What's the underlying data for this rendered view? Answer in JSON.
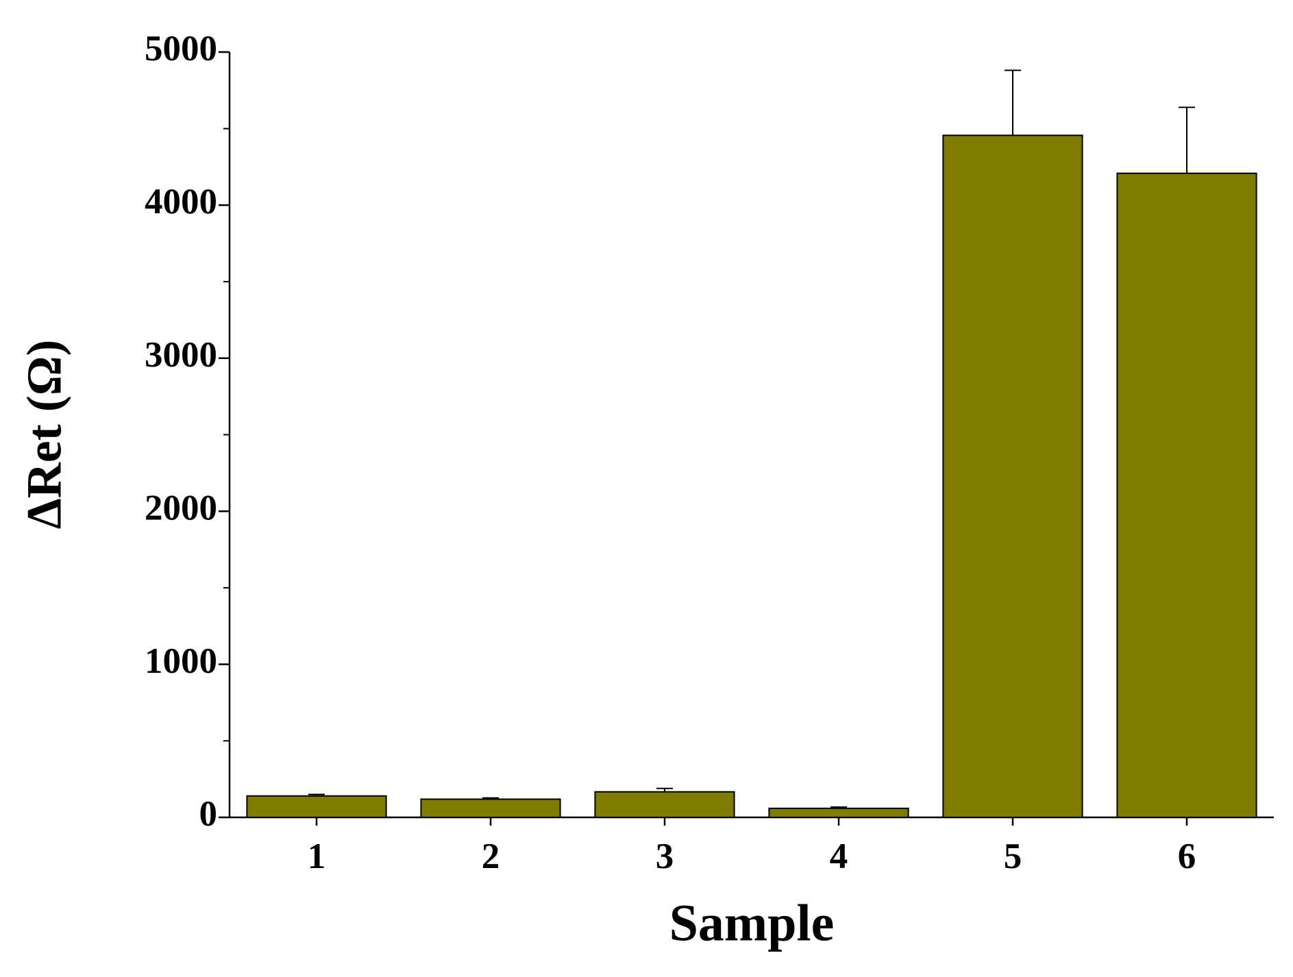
{
  "chart_data": {
    "type": "bar",
    "x_label": "Sample",
    "y_label": "ΔRet (Ω)",
    "categories": [
      "1",
      "2",
      "3",
      "4",
      "5",
      "6"
    ],
    "values": [
      140,
      119,
      167,
      59,
      4456,
      4208
    ],
    "errors": [
      10,
      8,
      22,
      8,
      425,
      431
    ],
    "color": "#7f7b00",
    "ylim": [
      0,
      5000
    ],
    "yticks": [
      0,
      1000,
      2000,
      3000,
      4000,
      5000
    ],
    "grid": false
  }
}
